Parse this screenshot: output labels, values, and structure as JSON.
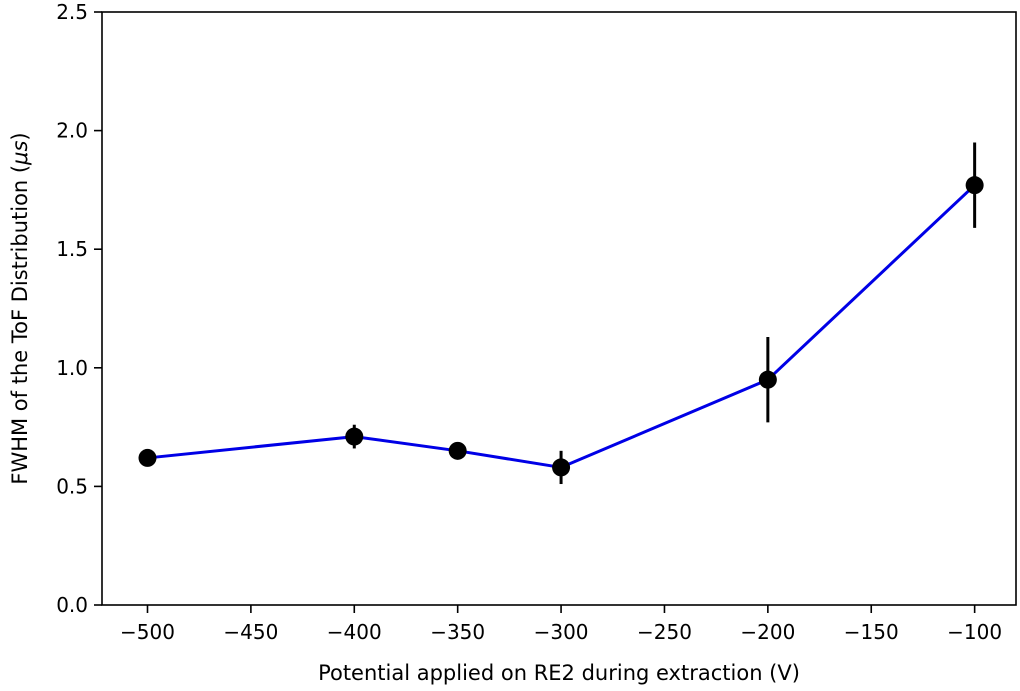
{
  "chart_data": {
    "type": "line",
    "title": "",
    "xlabel": "Potential applied on RE2 during extraction (V)",
    "ylabel_prefix": "FWHM of the ToF Distribution (",
    "ylabel_unit": "μs",
    "ylabel_suffix": ")",
    "xlim": [
      -522,
      -80
    ],
    "ylim": [
      0.0,
      2.5
    ],
    "xticks": [
      -500,
      -450,
      -400,
      -350,
      -300,
      -250,
      -200,
      -150,
      -100
    ],
    "xtick_labels": [
      "−500",
      "−450",
      "−400",
      "−350",
      "−300",
      "−250",
      "−200",
      "−150",
      "−100"
    ],
    "yticks": [
      0.0,
      0.5,
      1.0,
      1.5,
      2.0,
      2.5
    ],
    "ytick_labels": [
      "0.0",
      "0.5",
      "1.0",
      "1.5",
      "2.0",
      "2.5"
    ],
    "grid": false,
    "series": [
      {
        "line_color": "#0000e6",
        "marker_color": "#000000",
        "errorbar_color": "#000000",
        "x": [
          -500,
          -400,
          -350,
          -300,
          -200,
          -100
        ],
        "y": [
          0.62,
          0.71,
          0.65,
          0.58,
          0.95,
          1.77
        ],
        "yerr": [
          0.02,
          0.05,
          0.02,
          0.07,
          0.18,
          0.18
        ]
      }
    ]
  }
}
